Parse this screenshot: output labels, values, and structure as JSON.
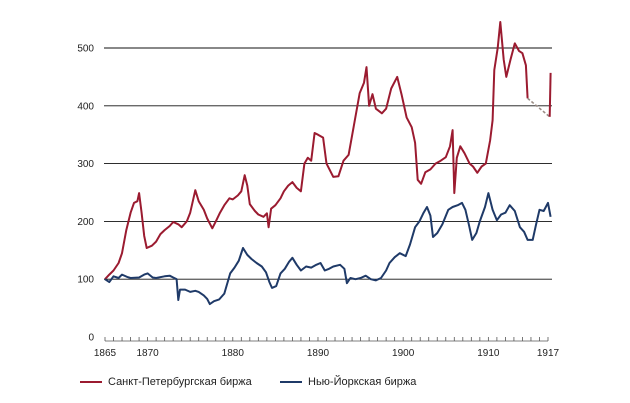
{
  "chart_data": {
    "type": "line",
    "title": "",
    "xlabel": "",
    "ylabel": "",
    "xlim": [
      1865,
      1917
    ],
    "ylim": [
      0,
      550
    ],
    "y_ticks": [
      0,
      100,
      200,
      300,
      400,
      500
    ],
    "x_tick_labels": [
      "1865",
      "1870",
      "1880",
      "1890",
      "1900",
      "1910",
      "1917"
    ],
    "x_tick_values": [
      1865,
      1870,
      1880,
      1890,
      1900,
      1910,
      1917
    ],
    "grid": "horizontal",
    "legend_position": "bottom-left",
    "series": [
      {
        "name": "Санкт-Петербургская биржа",
        "color": "#9b1b30",
        "points": [
          [
            1865,
            100
          ],
          [
            1865.5,
            108
          ],
          [
            1866,
            115
          ],
          [
            1866.6,
            128
          ],
          [
            1867,
            145
          ],
          [
            1867.5,
            185
          ],
          [
            1868,
            215
          ],
          [
            1868.4,
            232
          ],
          [
            1868.8,
            235
          ],
          [
            1869,
            249
          ],
          [
            1869.3,
            215
          ],
          [
            1869.6,
            175
          ],
          [
            1869.9,
            154
          ],
          [
            1870.5,
            158
          ],
          [
            1871,
            165
          ],
          [
            1871.5,
            178
          ],
          [
            1872,
            185
          ],
          [
            1872.6,
            192
          ],
          [
            1873,
            199
          ],
          [
            1873.6,
            195
          ],
          [
            1874,
            190
          ],
          [
            1874.6,
            200
          ],
          [
            1875,
            215
          ],
          [
            1875.6,
            254
          ],
          [
            1876,
            235
          ],
          [
            1876.6,
            220
          ],
          [
            1877,
            205
          ],
          [
            1877.6,
            188
          ],
          [
            1878,
            200
          ],
          [
            1878.5,
            215
          ],
          [
            1879,
            228
          ],
          [
            1879.6,
            240
          ],
          [
            1880,
            238
          ],
          [
            1880.6,
            245
          ],
          [
            1881,
            252
          ],
          [
            1881.4,
            280
          ],
          [
            1881.7,
            262
          ],
          [
            1882,
            230
          ],
          [
            1882.6,
            218
          ],
          [
            1883,
            212
          ],
          [
            1883.6,
            208
          ],
          [
            1884,
            214
          ],
          [
            1884.2,
            190
          ],
          [
            1884.5,
            222
          ],
          [
            1885,
            228
          ],
          [
            1885.6,
            240
          ],
          [
            1886,
            252
          ],
          [
            1886.5,
            262
          ],
          [
            1887,
            268
          ],
          [
            1887.5,
            258
          ],
          [
            1888,
            252
          ],
          [
            1888.4,
            300
          ],
          [
            1888.8,
            310
          ],
          [
            1889.2,
            305
          ],
          [
            1889.6,
            353
          ],
          [
            1890,
            350
          ],
          [
            1890.6,
            345
          ],
          [
            1891,
            300
          ],
          [
            1891.8,
            277
          ],
          [
            1892.4,
            278
          ],
          [
            1893,
            305
          ],
          [
            1893.6,
            315
          ],
          [
            1894.2,
            365
          ],
          [
            1894.9,
            422
          ],
          [
            1895.4,
            440
          ],
          [
            1895.7,
            467
          ],
          [
            1896,
            400
          ],
          [
            1896.4,
            420
          ],
          [
            1896.8,
            395
          ],
          [
            1897.5,
            387
          ],
          [
            1898,
            395
          ],
          [
            1898.6,
            430
          ],
          [
            1899.3,
            450
          ],
          [
            1899.8,
            420
          ],
          [
            1900.4,
            380
          ],
          [
            1901,
            363
          ],
          [
            1901.4,
            336
          ],
          [
            1901.7,
            272
          ],
          [
            1902.1,
            265
          ],
          [
            1902.6,
            285
          ],
          [
            1903.2,
            290
          ],
          [
            1903.8,
            300
          ],
          [
            1904.4,
            305
          ],
          [
            1905,
            311
          ],
          [
            1905.5,
            330
          ],
          [
            1905.8,
            358
          ],
          [
            1906,
            249
          ],
          [
            1906.3,
            310
          ],
          [
            1906.7,
            330
          ],
          [
            1907.2,
            318
          ],
          [
            1907.8,
            300
          ],
          [
            1908.2,
            295
          ],
          [
            1908.7,
            284
          ],
          [
            1909.2,
            295
          ],
          [
            1909.7,
            300
          ],
          [
            1910.2,
            340
          ],
          [
            1910.5,
            375
          ],
          [
            1910.7,
            462
          ],
          [
            1911.1,
            500
          ],
          [
            1911.4,
            545
          ],
          [
            1911.8,
            480
          ],
          [
            1912.1,
            450
          ],
          [
            1912.6,
            480
          ],
          [
            1913.1,
            508
          ],
          [
            1913.6,
            495
          ],
          [
            1914,
            491
          ],
          [
            1914.4,
            470
          ],
          [
            1914.6,
            413
          ]
        ],
        "dashed_segment": [
          [
            1914.6,
            413
          ],
          [
            1917.2,
            381
          ]
        ],
        "final_points": [
          [
            1917.2,
            381
          ],
          [
            1917.3,
            457
          ]
        ]
      },
      {
        "name": "Нью-Йоркская биржа",
        "color": "#1f3a68",
        "points": [
          [
            1865,
            100
          ],
          [
            1865.5,
            95
          ],
          [
            1866,
            105
          ],
          [
            1866.6,
            102
          ],
          [
            1867,
            108
          ],
          [
            1867.6,
            104
          ],
          [
            1868,
            102
          ],
          [
            1869,
            103
          ],
          [
            1869.6,
            108
          ],
          [
            1870,
            110
          ],
          [
            1870.6,
            103
          ],
          [
            1871,
            102
          ],
          [
            1872,
            105
          ],
          [
            1872.6,
            106
          ],
          [
            1873,
            103
          ],
          [
            1873.4,
            100
          ],
          [
            1873.6,
            64
          ],
          [
            1873.8,
            82
          ],
          [
            1874.4,
            82
          ],
          [
            1875,
            78
          ],
          [
            1875.6,
            80
          ],
          [
            1876,
            78
          ],
          [
            1876.6,
            72
          ],
          [
            1877,
            66
          ],
          [
            1877.3,
            57
          ],
          [
            1877.8,
            62
          ],
          [
            1878.4,
            65
          ],
          [
            1879,
            75
          ],
          [
            1879.7,
            110
          ],
          [
            1880.2,
            120
          ],
          [
            1880.7,
            132
          ],
          [
            1881.2,
            154
          ],
          [
            1881.7,
            142
          ],
          [
            1882.2,
            135
          ],
          [
            1882.8,
            128
          ],
          [
            1883.4,
            122
          ],
          [
            1883.9,
            112
          ],
          [
            1884.3,
            95
          ],
          [
            1884.6,
            85
          ],
          [
            1885.1,
            88
          ],
          [
            1885.6,
            110
          ],
          [
            1886.1,
            118
          ],
          [
            1886.6,
            130
          ],
          [
            1887,
            137
          ],
          [
            1887.5,
            125
          ],
          [
            1888,
            115
          ],
          [
            1888.6,
            122
          ],
          [
            1889.2,
            120
          ],
          [
            1889.8,
            125
          ],
          [
            1890.3,
            128
          ],
          [
            1890.8,
            115
          ],
          [
            1891.3,
            118
          ],
          [
            1891.8,
            122
          ],
          [
            1892.6,
            125
          ],
          [
            1893.1,
            118
          ],
          [
            1893.4,
            93
          ],
          [
            1893.8,
            102
          ],
          [
            1894.4,
            100
          ],
          [
            1895,
            102
          ],
          [
            1895.6,
            106
          ],
          [
            1896.2,
            100
          ],
          [
            1896.8,
            98
          ],
          [
            1897.4,
            102
          ],
          [
            1898,
            115
          ],
          [
            1898.4,
            128
          ],
          [
            1899,
            138
          ],
          [
            1899.6,
            145
          ],
          [
            1900.3,
            140
          ],
          [
            1900.8,
            160
          ],
          [
            1901.4,
            190
          ],
          [
            1901.9,
            200
          ],
          [
            1902.4,
            215
          ],
          [
            1902.8,
            225
          ],
          [
            1903.2,
            210
          ],
          [
            1903.5,
            173
          ],
          [
            1904,
            180
          ],
          [
            1904.6,
            195
          ],
          [
            1905.3,
            220
          ],
          [
            1905.8,
            225
          ],
          [
            1906.4,
            228
          ],
          [
            1906.9,
            232
          ],
          [
            1907.3,
            220
          ],
          [
            1907.7,
            195
          ],
          [
            1908.1,
            168
          ],
          [
            1908.6,
            180
          ],
          [
            1909,
            200
          ],
          [
            1909.6,
            225
          ],
          [
            1910,
            249
          ],
          [
            1910.5,
            220
          ],
          [
            1911,
            202
          ],
          [
            1911.5,
            212
          ],
          [
            1912,
            215
          ],
          [
            1912.5,
            228
          ],
          [
            1913.1,
            218
          ],
          [
            1913.7,
            190
          ],
          [
            1914.2,
            182
          ],
          [
            1914.6,
            168
          ],
          [
            1915.2,
            168
          ],
          [
            1915.6,
            195
          ],
          [
            1916,
            220
          ],
          [
            1916.5,
            218
          ],
          [
            1917,
            232
          ],
          [
            1917.3,
            208
          ]
        ]
      }
    ]
  }
}
